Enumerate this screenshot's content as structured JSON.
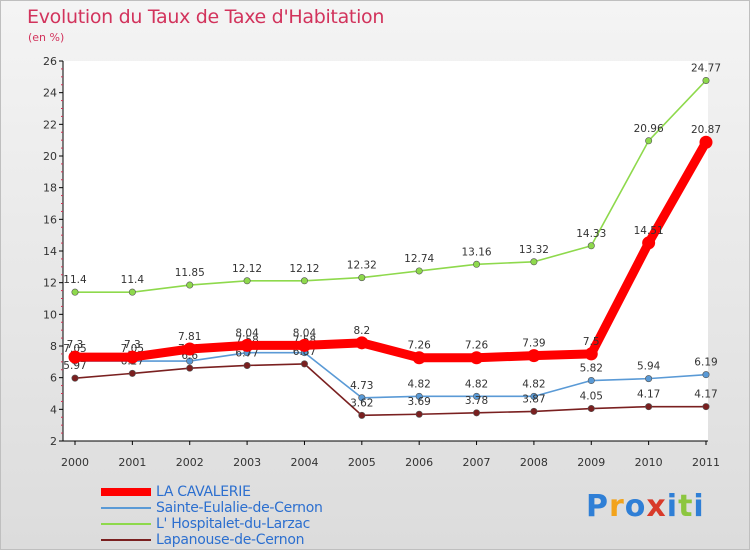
{
  "chart_data": {
    "type": "line",
    "title": "Evolution du Taux de Taxe d'Habitation",
    "unit_label": "(en %)",
    "categories": [
      "2000",
      "2001",
      "2002",
      "2003",
      "2004",
      "2005",
      "2006",
      "2007",
      "2008",
      "2009",
      "2010",
      "2011"
    ],
    "ylim": [
      2,
      26
    ],
    "yticks": [
      2,
      4,
      6,
      8,
      10,
      12,
      14,
      16,
      18,
      20,
      22,
      24,
      26
    ],
    "grid": false,
    "legend_position": "bottom-left",
    "series": [
      {
        "name": "LA CAVALERIE",
        "color": "#ff0000",
        "emphasis": true,
        "values": [
          7.3,
          7.3,
          7.81,
          8.04,
          8.04,
          8.2,
          7.26,
          7.26,
          7.39,
          7.5,
          14.51,
          20.87
        ],
        "labels": [
          "7.3",
          "7.3",
          "7.81",
          "8.04",
          "8.04",
          "8.2",
          "7.26",
          "7.26",
          "7.39",
          "7.5",
          "14.51",
          "20.87"
        ]
      },
      {
        "name": "Sainte-Eulalie-de-Cernon",
        "color": "#5a9ad6",
        "values": [
          7.05,
          7.05,
          7.05,
          7.58,
          7.58,
          4.73,
          4.82,
          4.82,
          4.82,
          5.82,
          5.94,
          6.19
        ],
        "labels": [
          "7.05",
          "7.05",
          "7.05",
          "7.58",
          "7.58",
          "4.73",
          "4.82",
          "4.82",
          "4.82",
          "5.82",
          "5.94",
          "6.19"
        ]
      },
      {
        "name": "L'Hospitalet-du-Larzac",
        "color": "#8ed94c",
        "values": [
          11.4,
          11.4,
          11.85,
          12.12,
          12.12,
          12.32,
          12.74,
          13.16,
          13.32,
          14.33,
          20.96,
          24.77
        ],
        "labels": [
          "11.4",
          "11.4",
          "11.85",
          "12.12",
          "12.12",
          "12.32",
          "12.74",
          "13.16",
          "13.32",
          "14.33",
          "20.96",
          "24.77"
        ]
      },
      {
        "name": "Lapanouse-de-Cernon",
        "color": "#7a2020",
        "values": [
          5.97,
          6.27,
          6.6,
          6.77,
          6.87,
          3.62,
          3.69,
          3.78,
          3.87,
          4.05,
          4.17,
          4.17
        ],
        "labels": [
          "5.97",
          "6.27",
          "6.6",
          "6.77",
          "6.87",
          "3.62",
          "3.69",
          "3.78",
          "3.87",
          "4.05",
          "4.17",
          "4.17"
        ]
      }
    ]
  },
  "legend": {
    "items": [
      "LA CAVALERIE",
      "Sainte-Eulalie-de-Cernon",
      "L' Hospitalet-du-Larzac",
      "Lapanouse-de-Cernon"
    ]
  },
  "brand": {
    "text": "Proxiti",
    "colors": [
      "#2f7fd6",
      "#f2a31b",
      "#2f7fd6",
      "#d83a2a",
      "#2f7fd6",
      "#8cc63f",
      "#2f7fd6"
    ]
  }
}
